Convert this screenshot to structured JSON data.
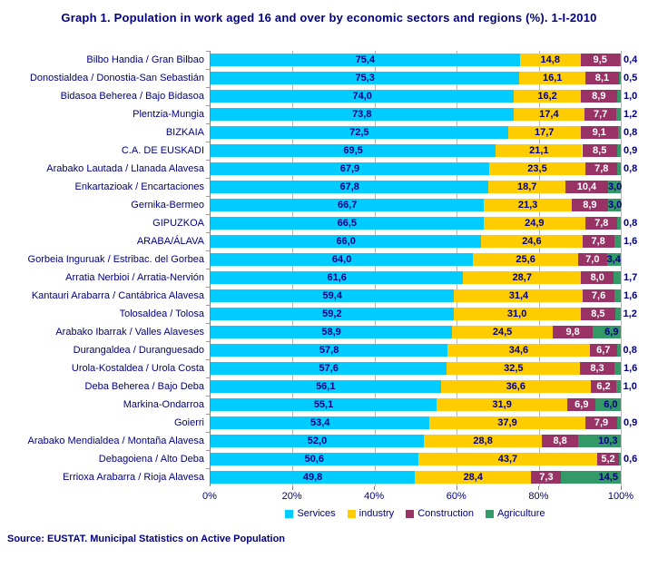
{
  "page": {
    "title": "Graph 1. Population in work aged 16 and over by economic sectors and regions (%). 1-I-2010",
    "source": "Source: EUSTAT. Municipal Statistics on Active Population"
  },
  "axis": {
    "tick_labels": [
      "0%",
      "20%",
      "40%",
      "60%",
      "80%",
      "100%"
    ],
    "tick_values": [
      0,
      20,
      40,
      60,
      80,
      100
    ]
  },
  "legend": {
    "items": [
      {
        "label": "Services",
        "color": "#00CCFF"
      },
      {
        "label": "industry",
        "color": "#FFCC00"
      },
      {
        "label": "Construction",
        "color": "#993366"
      },
      {
        "label": "Agriculture",
        "color": "#339966"
      }
    ]
  },
  "chart_data": {
    "type": "bar",
    "orientation": "horizontal",
    "stacked": true,
    "title": "Graph 1. Population in work aged 16 and over by economic sectors and regions (%). 1-I-2010",
    "xlabel": "",
    "ylabel": "",
    "xlim": [
      0,
      100
    ],
    "grid": true,
    "legend_position": "bottom",
    "value_format": "decimal-comma",
    "categories": [
      "Bilbo Handia / Gran Bilbao",
      "Donostialdea / Donostia-San Sebastián",
      "Bidasoa Beherea / Bajo Bidasoa",
      "Plentzia-Mungia",
      "BIZKAIA",
      "C.A. DE EUSKADI",
      "Arabako Lautada / Llanada Alavesa",
      "Enkartazioak / Encartaciones",
      "Gernika-Bermeo",
      "GIPUZKOA",
      "ARABA/ÁLAVA",
      "Gorbeia Inguruak / Estribac. del Gorbea",
      "Arratia Nerbioi / Arratia-Nervión",
      "Kantauri Arabarra / Cantábrica Alavesa",
      "Tolosaldea / Tolosa",
      "Arabako Ibarrak / Valles Alaveses",
      "Durangaldea / Duranguesado",
      "Urola-Kostaldea / Urola Costa",
      "Deba Beherea / Bajo Deba",
      "Markina-Ondarroa",
      "Goierri",
      "Arabako Mendialdea / Montaña Alavesa",
      "Debagoiena / Alto Deba",
      "Errioxa Arabarra / Rioja Alavesa"
    ],
    "series": [
      {
        "name": "Services",
        "color": "#00CCFF",
        "label_color": "#000080",
        "values": [
          75.4,
          75.3,
          74.0,
          73.8,
          72.5,
          69.5,
          67.9,
          67.8,
          66.7,
          66.5,
          66.0,
          64.0,
          61.6,
          59.4,
          59.2,
          58.9,
          57.8,
          57.6,
          56.1,
          55.1,
          53.4,
          52.0,
          50.6,
          49.8
        ]
      },
      {
        "name": "industry",
        "color": "#FFCC00",
        "label_color": "#000080",
        "values": [
          14.8,
          16.1,
          16.2,
          17.4,
          17.7,
          21.1,
          23.5,
          18.7,
          21.3,
          24.9,
          24.6,
          25.6,
          28.7,
          31.4,
          31.0,
          24.5,
          34.6,
          32.5,
          36.6,
          31.9,
          37.9,
          28.8,
          43.7,
          28.4
        ]
      },
      {
        "name": "Construction",
        "color": "#993366",
        "label_color": "#FFFFFF",
        "values": [
          9.5,
          8.1,
          8.9,
          7.7,
          9.1,
          8.5,
          7.8,
          10.4,
          8.9,
          7.8,
          7.8,
          7.0,
          8.0,
          7.6,
          8.5,
          9.8,
          6.7,
          8.3,
          6.2,
          6.9,
          7.9,
          8.8,
          5.2,
          7.3
        ]
      },
      {
        "name": "Agriculture",
        "color": "#339966",
        "label_color": "#000080",
        "values": [
          0.4,
          0.5,
          1.0,
          1.2,
          0.8,
          0.9,
          0.8,
          3.0,
          3.0,
          0.8,
          1.6,
          3.4,
          1.7,
          1.6,
          1.2,
          6.9,
          0.8,
          1.6,
          1.0,
          6.0,
          0.9,
          10.3,
          0.6,
          14.5
        ]
      }
    ]
  }
}
